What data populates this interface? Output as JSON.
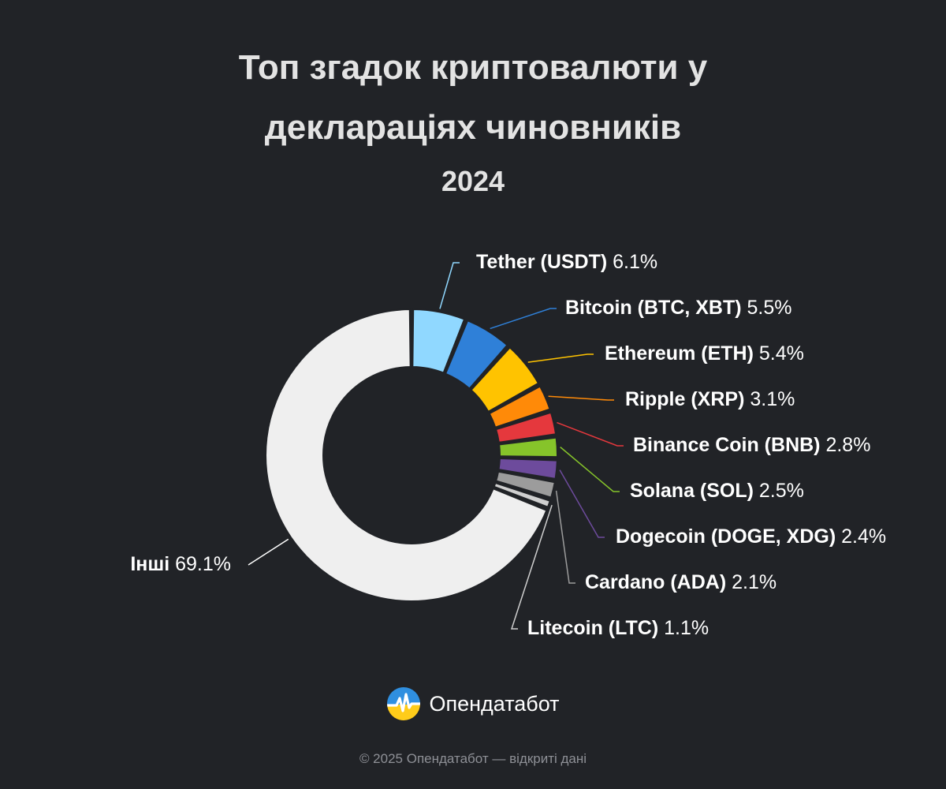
{
  "header": {
    "title_line1": "Топ згадок криптовалюти у",
    "title_line2": "деклараціях чиновників",
    "subtitle": "2024"
  },
  "chart_data": {
    "type": "pie",
    "variant": "donut",
    "title": "Топ згадок криптовалюти у деклараціях чиновників",
    "subtitle": "2024",
    "unit": "%",
    "slices": [
      {
        "label": "Tether (USDT)",
        "value": 6.1,
        "color": "#90d8ff"
      },
      {
        "label": "Bitcoin (BTC, XBT)",
        "value": 5.5,
        "color": "#2f80d8"
      },
      {
        "label": "Ethereum (ETH)",
        "value": 5.4,
        "color": "#ffc300"
      },
      {
        "label": "Ripple (XRP)",
        "value": 3.1,
        "color": "#ff8a08"
      },
      {
        "label": "Binance Coin (BNB)",
        "value": 2.8,
        "color": "#e5383d"
      },
      {
        "label": "Solana (SOL)",
        "value": 2.5,
        "color": "#86c42a"
      },
      {
        "label": "Dogecoin (DOGE, XDG)",
        "value": 2.4,
        "color": "#6d4b9c"
      },
      {
        "label": "Cardano (ADA)",
        "value": 2.1,
        "color": "#9c9c9c"
      },
      {
        "label": "Litecoin (LTC)",
        "value": 1.1,
        "color": "#cfcfcf"
      },
      {
        "label": "Інші",
        "value": 69.1,
        "color": "#efefef"
      }
    ]
  },
  "brand": {
    "name": "Опендатабот",
    "logo_icon": "opendatabot-logo-icon"
  },
  "footer": {
    "copyright": "© 2025 Опендатабот — відкриті дані"
  }
}
